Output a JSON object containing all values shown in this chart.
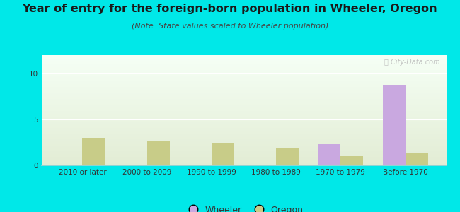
{
  "title": "Year of entry for the foreign-born population in Wheeler, Oregon",
  "subtitle": "(Note: State values scaled to Wheeler population)",
  "categories": [
    "2010 or later",
    "2000 to 2009",
    "1990 to 1999",
    "1980 to 1989",
    "1970 to 1979",
    "Before 1970"
  ],
  "wheeler_values": [
    0,
    0,
    0,
    0,
    2.3,
    8.8
  ],
  "oregon_values": [
    3.0,
    2.6,
    2.5,
    1.9,
    1.0,
    1.3
  ],
  "wheeler_color": "#c9a8e0",
  "oregon_color": "#c8cc88",
  "background_color": "#00e8e8",
  "plot_bg_top": "#f5fff5",
  "plot_bg_bottom": "#e2ecd4",
  "ylim": [
    0,
    12
  ],
  "yticks": [
    0,
    5,
    10
  ],
  "bar_width": 0.35,
  "title_fontsize": 11.5,
  "subtitle_fontsize": 8,
  "tick_fontsize": 7.5,
  "legend_fontsize": 9
}
